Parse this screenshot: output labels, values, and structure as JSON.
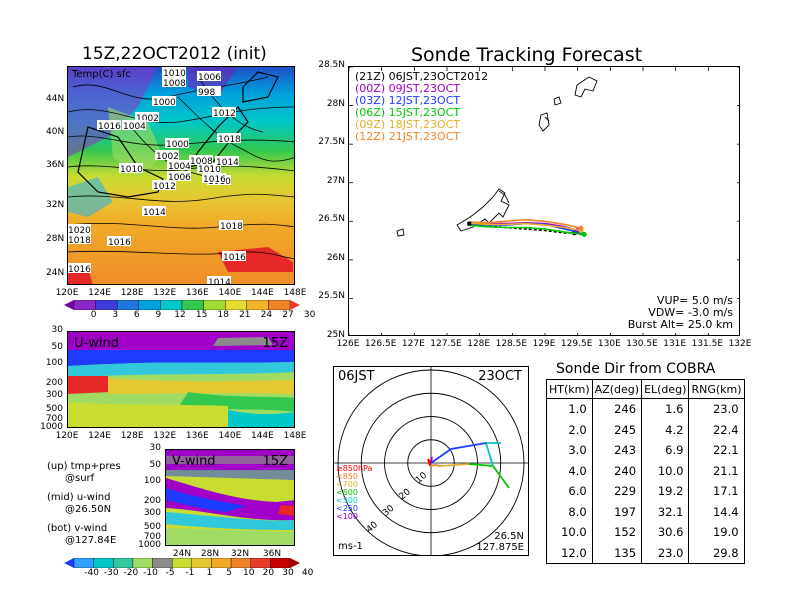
{
  "left": {
    "map_title": "15Z,22OCT2012 (init)",
    "map_label": "Temp(C) sfc",
    "map_lat_ticks": [
      "44N",
      "40N",
      "36N",
      "32N",
      "28N",
      "24N"
    ],
    "map_lon_ticks": [
      "120E",
      "124E",
      "128E",
      "132E",
      "136E",
      "140E",
      "144E",
      "148E"
    ],
    "pressure_labels": [
      "1010",
      "1008",
      "1006",
      "998",
      "1000",
      "1012",
      "1002",
      "1016",
      "1004",
      "1018",
      "1010",
      "1000",
      "1010",
      "1002",
      "1004",
      "1008",
      "1014",
      "1006",
      "1010",
      "1012",
      "1016",
      "1014",
      "1018",
      "1020",
      "1018",
      "1016",
      "1016",
      "1014",
      "1016"
    ],
    "temp_scale": [
      "0",
      "3",
      "6",
      "9",
      "12",
      "15",
      "18",
      "21",
      "24",
      "27",
      "30"
    ],
    "wind_scale": [
      "-40",
      "-30",
      "-20",
      "-10",
      "-5",
      "-1",
      "1",
      "5",
      "10",
      "20",
      "30",
      "40"
    ],
    "u_panel": {
      "label": "U-wind",
      "time": "15Z",
      "y_ticks": [
        "30",
        "50",
        "100",
        "200",
        "300",
        "500",
        "700",
        "1000"
      ]
    },
    "v_panel": {
      "label": "V-wind",
      "time": "15Z",
      "y_ticks": [
        "30",
        "50",
        "100",
        "200",
        "300",
        "500",
        "700",
        "1000"
      ],
      "x_ticks": [
        "24N",
        "28N",
        "32N",
        "36N"
      ]
    },
    "notes": [
      "(up) tmp+pres",
      "@surf",
      "(mid) u-wind",
      "@26.50N",
      "(bot) v-wind",
      "@127.84E"
    ]
  },
  "track": {
    "title": "Sonde Tracking Forecast",
    "legend": [
      {
        "text": "(21Z) 06JST,23OCT2012",
        "color": "#000000"
      },
      {
        "text": "(00Z) 09JST,23OCT",
        "color": "#a000c8"
      },
      {
        "text": "(03Z) 12JST,23OCT",
        "color": "#1e3cff"
      },
      {
        "text": "(06Z) 15JST,23OCT",
        "color": "#00c800"
      },
      {
        "text": "(09Z) 18JST,23OCT",
        "color": "#e6af2d"
      },
      {
        "text": "(12Z) 21JST,23OCT",
        "color": "#f08228"
      }
    ],
    "params": [
      "VUP= 5.0 m/s",
      "VDW= -3.0 m/s",
      "Burst Alt= 25.0 km"
    ],
    "x_ticks": [
      "126E",
      "126.5E",
      "127E",
      "127.5E",
      "128E",
      "128.5E",
      "129E",
      "129.5E",
      "130E",
      "130.5E",
      "131E",
      "131.5E",
      "132E"
    ],
    "y_ticks": [
      "28.5N",
      "28N",
      "27.5N",
      "27N",
      "26.5N",
      "26N",
      "25.5N",
      "25N"
    ]
  },
  "polar": {
    "time_left": "06JST",
    "time_right": "23OCT",
    "legend": [
      {
        "text": "≥850hPa",
        "color": "#ff0000"
      },
      {
        "text": "<850",
        "color": "#f08228"
      },
      {
        "text": "<700",
        "color": "#e6af2d"
      },
      {
        "text": "<500",
        "color": "#00c800"
      },
      {
        "text": "<300",
        "color": "#00c8c8"
      },
      {
        "text": "<250",
        "color": "#1e3cff"
      },
      {
        "text": "<100",
        "color": "#a000c8"
      }
    ],
    "ring_labels": [
      "10",
      "20",
      "30",
      "40"
    ],
    "unit": "ms-1",
    "loc_lat": "26.5N",
    "loc_lon": "127.875E"
  },
  "table": {
    "title": "Sonde Dir from COBRA",
    "headers": [
      "HT(km)",
      "AZ(deg)",
      "EL(deg)",
      "RNG(km)"
    ],
    "rows": [
      [
        "1.0",
        "246",
        "1.6",
        "23.0"
      ],
      [
        "2.0",
        "245",
        "4.2",
        "22.4"
      ],
      [
        "3.0",
        "243",
        "6.9",
        "22.1"
      ],
      [
        "4.0",
        "240",
        "10.0",
        "21.1"
      ],
      [
        "6.0",
        "229",
        "19.2",
        "17.1"
      ],
      [
        "8.0",
        "197",
        "32.1",
        "14.4"
      ],
      [
        "10.0",
        "152",
        "30.6",
        "19.0"
      ],
      [
        "12.0",
        "135",
        "23.0",
        "29.8"
      ]
    ]
  },
  "chart_data": [
    {
      "type": "line",
      "title": "Sonde Tracking Forecast",
      "xlim": [
        126,
        132
      ],
      "ylim": [
        25,
        28.5
      ],
      "series": [
        {
          "name": "(21Z) 06JST,23OCT2012",
          "x": [
            127.84,
            128.1,
            128.4,
            128.7,
            129.0,
            129.3,
            129.45
          ],
          "y": [
            26.48,
            26.44,
            26.42,
            26.4,
            26.38,
            26.35,
            26.35
          ]
        },
        {
          "name": "(00Z) 09JST,23OCT",
          "x": [
            127.84,
            128.1,
            128.4,
            128.7,
            129.0,
            129.3,
            129.5
          ],
          "y": [
            26.49,
            26.47,
            26.47,
            26.48,
            26.47,
            26.43,
            26.38
          ]
        },
        {
          "name": "(03Z) 12JST,23OCT",
          "x": [
            127.84,
            128.1,
            128.4,
            128.7,
            129.0,
            129.3,
            129.55
          ],
          "y": [
            26.47,
            26.45,
            26.45,
            26.47,
            26.46,
            26.4,
            26.35
          ]
        },
        {
          "name": "(06Z) 15JST,23OCT",
          "x": [
            127.84,
            128.1,
            128.4,
            128.7,
            129.0,
            129.3,
            129.6
          ],
          "y": [
            26.45,
            26.43,
            26.42,
            26.42,
            26.4,
            26.36,
            26.33
          ]
        },
        {
          "name": "(09Z) 18JST,23OCT",
          "x": [
            127.84,
            128.1,
            128.4,
            128.7,
            129.0,
            129.3,
            129.55
          ],
          "y": [
            26.48,
            26.46,
            26.46,
            26.47,
            26.45,
            26.42,
            26.38
          ]
        },
        {
          "name": "(12Z) 21JST,23OCT",
          "x": [
            127.84,
            128.1,
            128.4,
            128.7,
            129.0,
            129.3,
            129.55
          ],
          "y": [
            26.49,
            26.48,
            26.5,
            26.52,
            26.5,
            26.46,
            26.41
          ]
        }
      ]
    },
    {
      "type": "table",
      "title": "Sonde Dir from COBRA",
      "columns": [
        "HT(km)",
        "AZ(deg)",
        "EL(deg)",
        "RNG(km)"
      ],
      "rows": [
        [
          1.0,
          246,
          1.6,
          23.0
        ],
        [
          2.0,
          245,
          4.2,
          22.4
        ],
        [
          3.0,
          243,
          6.9,
          22.1
        ],
        [
          4.0,
          240,
          10.0,
          21.1
        ],
        [
          6.0,
          229,
          19.2,
          17.1
        ],
        [
          8.0,
          197,
          32.1,
          14.4
        ],
        [
          10.0,
          152,
          30.6,
          19.0
        ],
        [
          12.0,
          135,
          23.0,
          29.8
        ]
      ]
    }
  ]
}
